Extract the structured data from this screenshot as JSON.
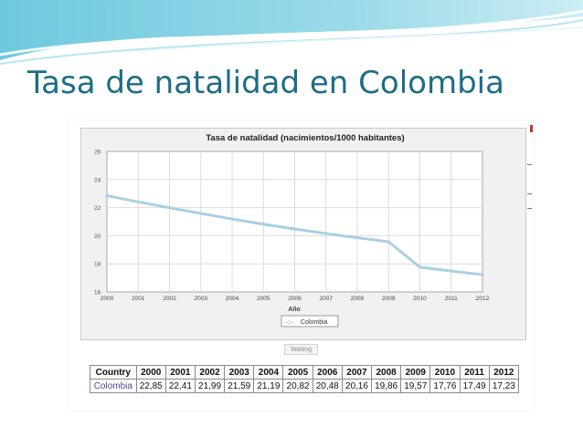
{
  "slide": {
    "title": "Tasa de natalidad en Colombia",
    "accent_color": "#1d6d86",
    "background": "#ffffff"
  },
  "chart_data": {
    "type": "line",
    "title": "Tasa de natalidad (nacimientos/1000 habitantes)",
    "xlabel": "Año",
    "ylabel": "",
    "x": [
      2000,
      2001,
      2002,
      2003,
      2004,
      2005,
      2006,
      2007,
      2008,
      2009,
      2010,
      2011,
      2012
    ],
    "ylim": [
      16,
      26
    ],
    "yticks": [
      16,
      18,
      20,
      22,
      24,
      26
    ],
    "grid": true,
    "legend_position": "bottom-center",
    "series": [
      {
        "name": "Colombia",
        "color": "#a9cfe3",
        "values": [
          22.85,
          22.41,
          21.99,
          21.59,
          21.19,
          20.82,
          20.48,
          20.16,
          19.86,
          19.57,
          17.76,
          17.49,
          17.23
        ]
      }
    ]
  },
  "waiting_label": "Waiting",
  "table": {
    "headers": [
      "Country",
      "2000",
      "2001",
      "2002",
      "2003",
      "2004",
      "2005",
      "2006",
      "2007",
      "2008",
      "2009",
      "2010",
      "2011",
      "2012"
    ],
    "rows": [
      [
        "Colombia",
        "22,85",
        "22,41",
        "21,99",
        "21,59",
        "21,19",
        "20,82",
        "20,48",
        "20,16",
        "19,86",
        "19,57",
        "17,76",
        "17,49",
        "17,23"
      ]
    ]
  }
}
